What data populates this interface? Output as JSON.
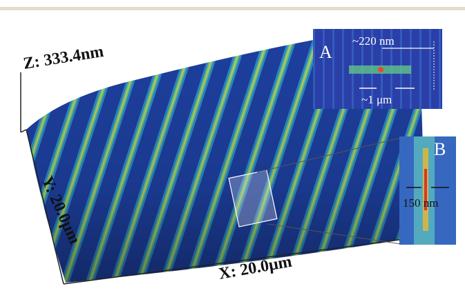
{
  "axes": {
    "z_label": "Z: 333.4nm",
    "y_label": "Y: 20.0μm",
    "x_label": "X: 20.0μm"
  },
  "inset_a": {
    "label": "A",
    "period": "~220 nm",
    "width": "~1 μm"
  },
  "inset_b": {
    "label": "B",
    "width": "150 nm"
  }
}
